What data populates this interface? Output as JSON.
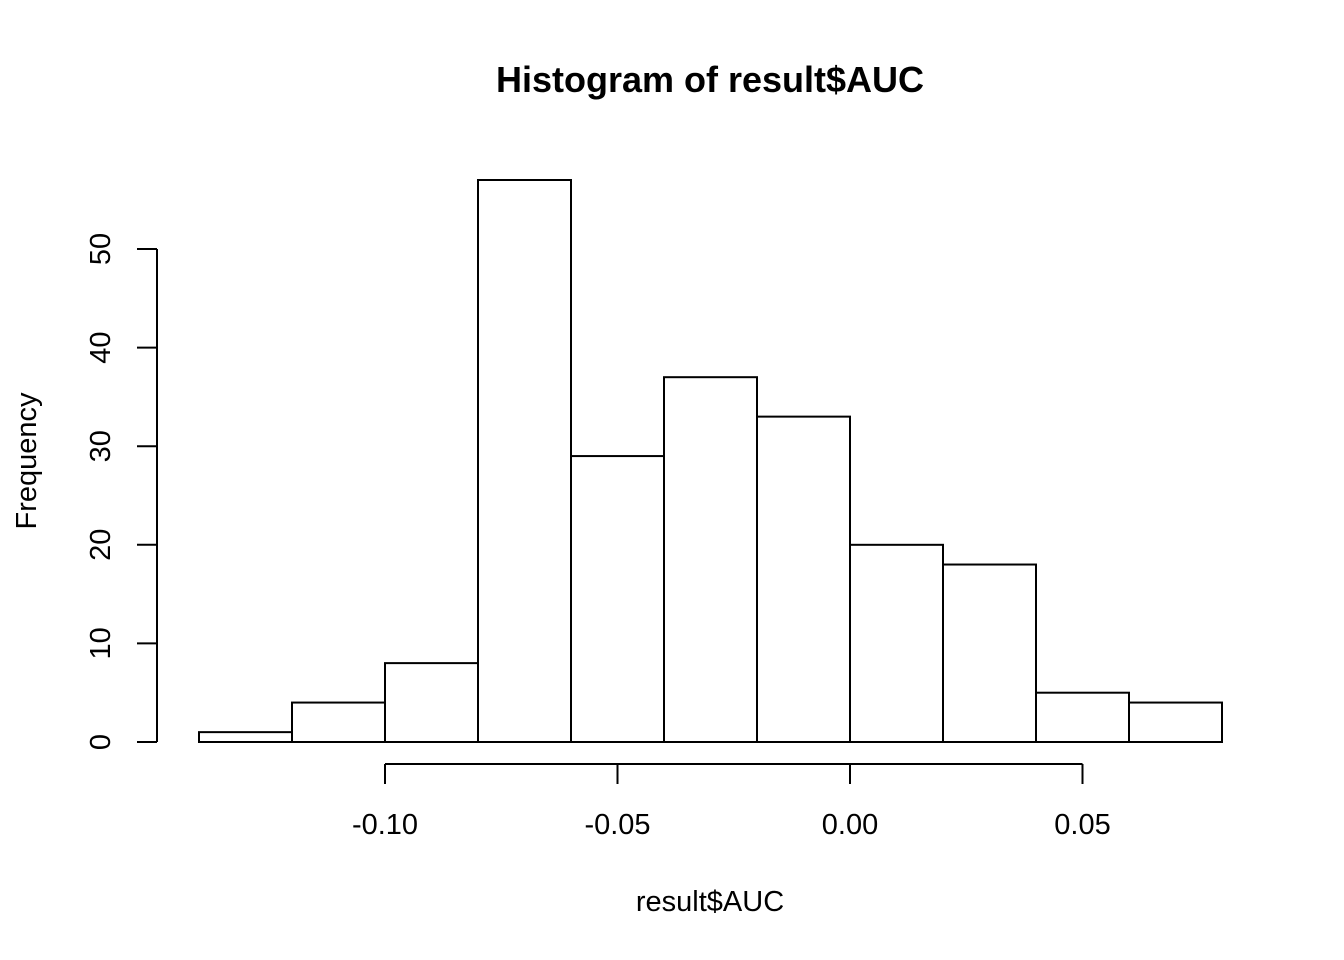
{
  "chart_data": {
    "type": "bar",
    "subtype": "histogram",
    "title": "Histogram of result$AUC",
    "xlabel": "result$AUC",
    "ylabel": "Frequency",
    "bins": [
      {
        "start": -0.14,
        "end": -0.12,
        "count": 1
      },
      {
        "start": -0.12,
        "end": -0.1,
        "count": 4
      },
      {
        "start": -0.1,
        "end": -0.08,
        "count": 8
      },
      {
        "start": -0.08,
        "end": -0.06,
        "count": 57
      },
      {
        "start": -0.06,
        "end": -0.04,
        "count": 29
      },
      {
        "start": -0.04,
        "end": -0.02,
        "count": 37
      },
      {
        "start": -0.02,
        "end": 0.0,
        "count": 33
      },
      {
        "start": 0.0,
        "end": 0.02,
        "count": 20
      },
      {
        "start": 0.02,
        "end": 0.04,
        "count": 18
      },
      {
        "start": 0.04,
        "end": 0.06,
        "count": 5
      },
      {
        "start": 0.06,
        "end": 0.08,
        "count": 4
      }
    ],
    "xlim": [
      -0.14,
      0.08
    ],
    "ylim": [
      0,
      57
    ],
    "x_ticks": [
      -0.1,
      -0.05,
      0.0,
      0.05
    ],
    "x_tick_labels": [
      "-0.10",
      "-0.05",
      "0.00",
      "0.05"
    ],
    "y_ticks": [
      0,
      10,
      20,
      30,
      40,
      50
    ],
    "y_tick_labels": [
      "0",
      "10",
      "20",
      "30",
      "40",
      "50"
    ],
    "grid": false,
    "bar_fill": "#ffffff",
    "bar_stroke": "#000000"
  }
}
